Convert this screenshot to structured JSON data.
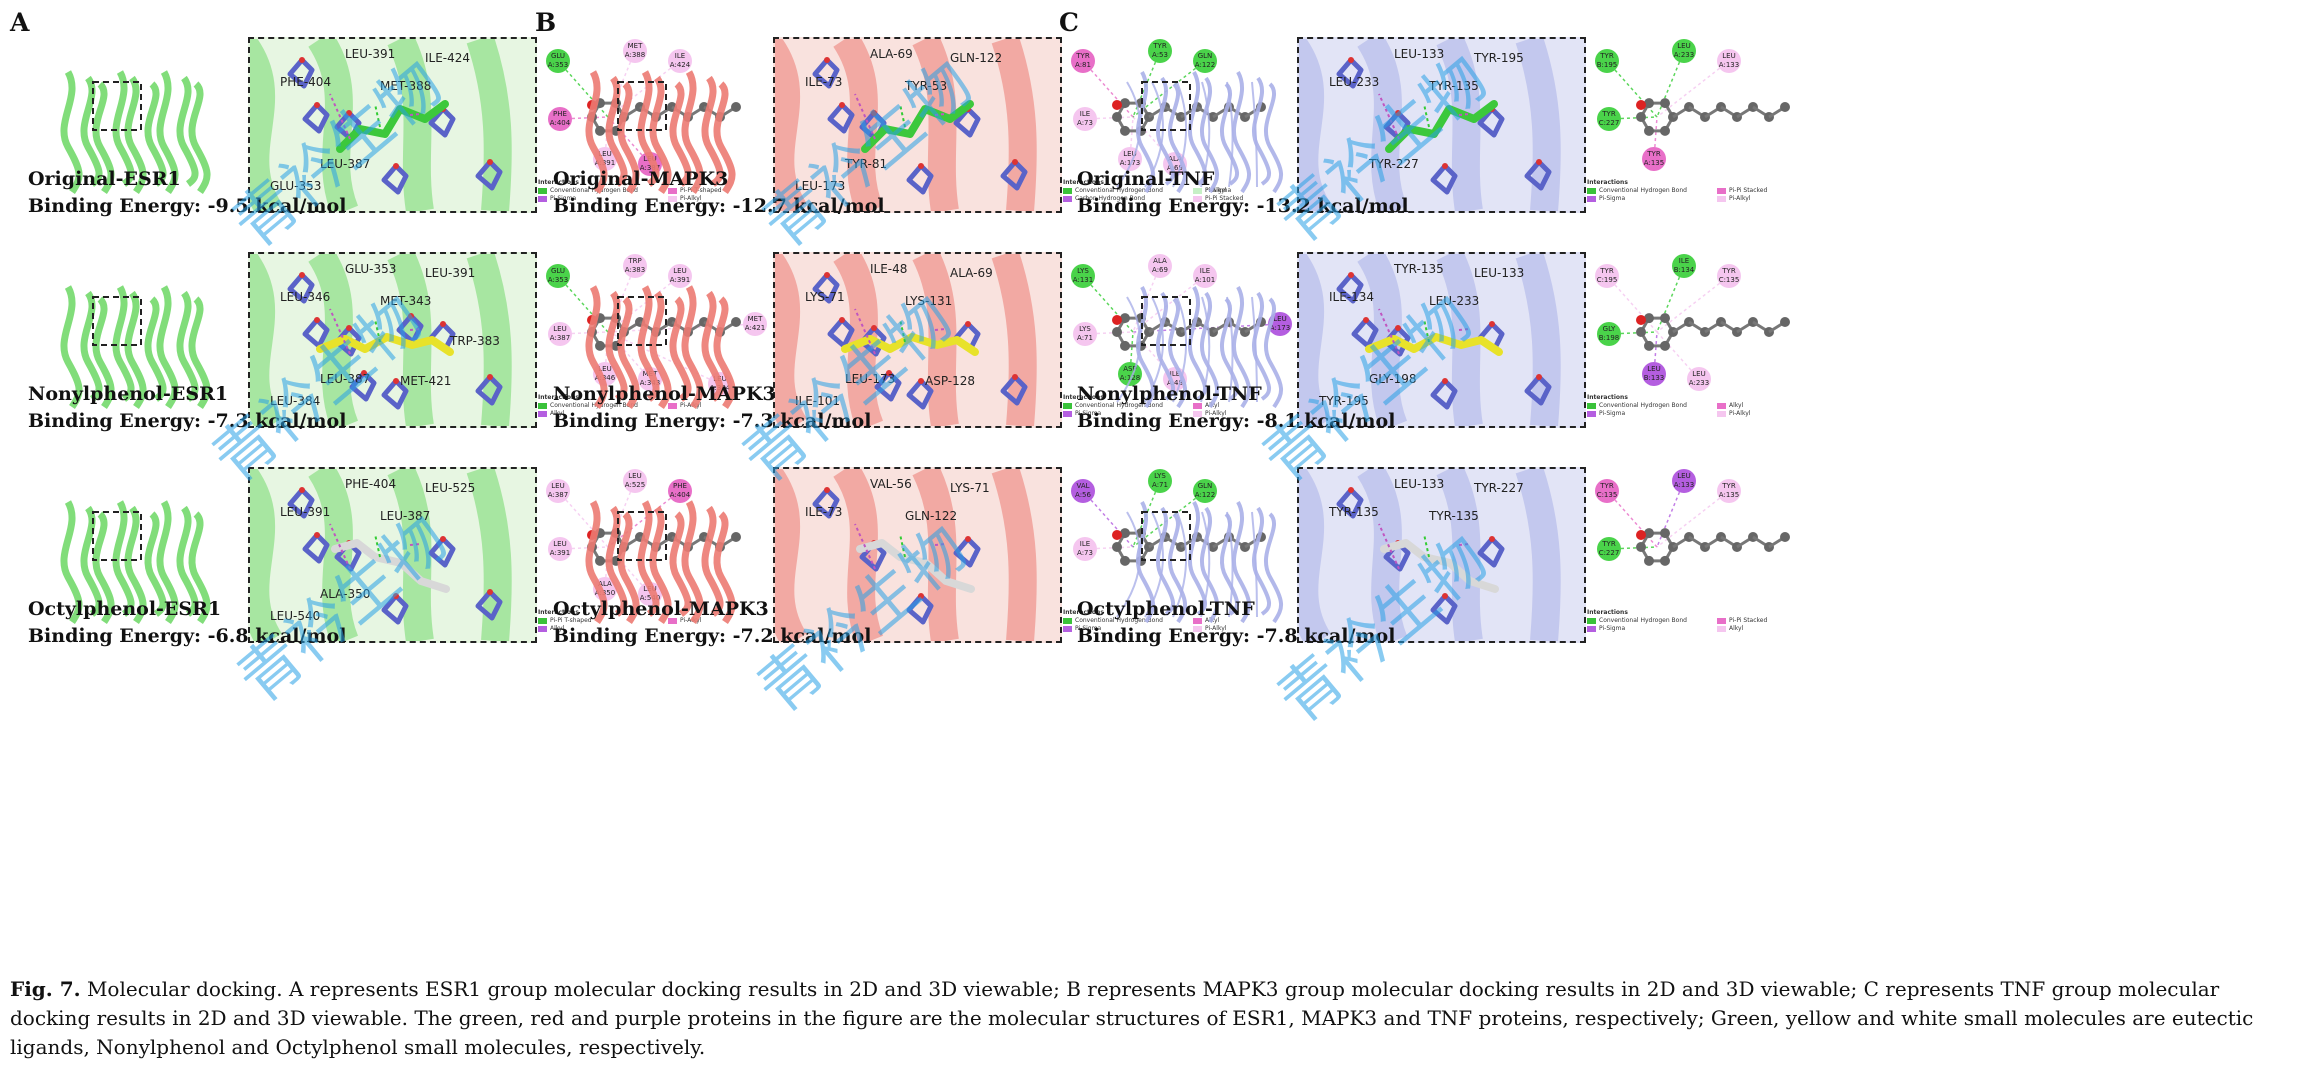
{
  "columns": [
    {
      "letter": "A",
      "protein_color": "#73d96b",
      "box_bg": "#e7f6e2",
      "panels": [
        {
          "name": "Original-ESR1",
          "energy": "Binding Energy: -9.5 kcal/mol",
          "ligand_color": "#3cc83c",
          "residues3d": [
            "LEU-391",
            "ILE-424",
            "PHE-404",
            "MET-388",
            "LEU-387",
            "GLU-353"
          ],
          "nodes2d": [
            {
              "t": "GLU\nA:353",
              "c": "g"
            },
            {
              "t": "MET\nA:388",
              "c": "p"
            },
            {
              "t": "ILE\nA:424",
              "c": "p"
            },
            {
              "t": "PHE\nA:404",
              "c": "m"
            },
            {
              "t": "LEU\nA:391",
              "c": "p"
            },
            {
              "t": "LEU\nA:387",
              "c": "m"
            }
          ],
          "legend": [
            "Conventional Hydrogen Bond",
            "Pi-Sigma",
            "Pi-Pi T-shaped",
            "Pi-Alkyl"
          ]
        },
        {
          "name": "Nonylphenol-ESR1",
          "energy": "Binding Energy: -7.3 kcal/mol",
          "ligand_color": "#e8e22a",
          "residues3d": [
            "GLU-353",
            "LEU-391",
            "LEU-346",
            "MET-343",
            "LEU-387",
            "LEU-384",
            "MET-421",
            "TRP-383"
          ],
          "nodes2d": [
            {
              "t": "GLU\nA:353",
              "c": "g"
            },
            {
              "t": "TRP\nA:383",
              "c": "p"
            },
            {
              "t": "LEU\nA:391",
              "c": "p"
            },
            {
              "t": "LEU\nA:387",
              "c": "p"
            },
            {
              "t": "LEU\nA:346",
              "c": "p"
            },
            {
              "t": "MET\nA:343",
              "c": "p"
            },
            {
              "t": "MET\nA:421",
              "c": "p"
            },
            {
              "t": "LEU\nA:384",
              "c": "p"
            }
          ],
          "legend": [
            "Conventional Hydrogen Bond",
            "Alkyl",
            "Pi-Alkyl"
          ]
        },
        {
          "name": "Octylphenol-ESR1",
          "energy": "Binding Energy: -6.8 kcal/mol",
          "ligand_color": "#d8d8d8",
          "residues3d": [
            "PHE-404",
            "LEU-525",
            "LEU-391",
            "LEU-387",
            "ALA-350",
            "LEU-540"
          ],
          "nodes2d": [
            {
              "t": "LEU\nA:387",
              "c": "p"
            },
            {
              "t": "LEU\nA:525",
              "c": "p"
            },
            {
              "t": "PHE\nA:404",
              "c": "m"
            },
            {
              "t": "LEU\nA:391",
              "c": "p"
            },
            {
              "t": "ALA\nA:350",
              "c": "p"
            },
            {
              "t": "LEU\nA:540",
              "c": "p"
            }
          ],
          "legend": [
            "Pi-Pi T-shaped",
            "Alkyl",
            "Pi-Alkyl"
          ]
        }
      ]
    },
    {
      "letter": "B",
      "protein_color": "#ec7a72",
      "box_bg": "#f9e2de",
      "panels": [
        {
          "name": "Original-MAPK3",
          "energy": "Binding Energy: -12.7 kcal/mol",
          "ligand_color": "#3cc83c",
          "residues3d": [
            "ALA-69",
            "GLN-122",
            "ILE-73",
            "TYR-53",
            "TYR-81",
            "LEU-173"
          ],
          "nodes2d": [
            {
              "t": "TYR\nA:81",
              "c": "m"
            },
            {
              "t": "TYR\nA:53",
              "c": "g"
            },
            {
              "t": "GLN\nA:122",
              "c": "g"
            },
            {
              "t": "ILE\nA:73",
              "c": "p"
            },
            {
              "t": "LEU\nA:173",
              "c": "p"
            },
            {
              "t": "ALA\nA:69",
              "c": "p"
            }
          ],
          "legend": [
            "Conventional Hydrogen Bond",
            "Carbon Hydrogen Bond",
            "Pi-Sigma",
            "Pi-Pi Stacked",
            "Pi-Alkyl"
          ]
        },
        {
          "name": "Nonylphenol-MAPK3",
          "energy": "Binding Energy: -7.3 kcal/mol",
          "ligand_color": "#e8e22a",
          "residues3d": [
            "ILE-48",
            "ALA-69",
            "LYS-71",
            "LYS-131",
            "LEU-173",
            "ILE-101",
            "ASP-128"
          ],
          "nodes2d": [
            {
              "t": "LYS\nA:131",
              "c": "g"
            },
            {
              "t": "ALA\nA:69",
              "c": "p"
            },
            {
              "t": "ILE\nA:101",
              "c": "p"
            },
            {
              "t": "LYS\nA:71",
              "c": "p"
            },
            {
              "t": "ASP\nA:128",
              "c": "g"
            },
            {
              "t": "ILE\nA:48",
              "c": "p"
            },
            {
              "t": "LEU\nA:173",
              "c": "v"
            }
          ],
          "legend": [
            "Conventional Hydrogen Bond",
            "Pi-Sigma",
            "Alkyl",
            "Pi-Alkyl"
          ]
        },
        {
          "name": "Octylphenol-MAPK3",
          "energy": "Binding Energy: -7.2 kcal/mol",
          "ligand_color": "#d8d8d8",
          "residues3d": [
            "VAL-56",
            "LYS-71",
            "ILE-73",
            "GLN-122"
          ],
          "nodes2d": [
            {
              "t": "VAL\nA:56",
              "c": "v"
            },
            {
              "t": "LYS\nA:71",
              "c": "g"
            },
            {
              "t": "GLN\nA:122",
              "c": "g"
            },
            {
              "t": "ILE\nA:73",
              "c": "p"
            }
          ],
          "legend": [
            "Conventional Hydrogen Bond",
            "Pi-Sigma",
            "Alkyl",
            "Pi-Alkyl"
          ]
        }
      ]
    },
    {
      "letter": "C",
      "protein_color": "#aab0e8",
      "box_bg": "#e2e4f6",
      "panels": [
        {
          "name": "Original-TNF",
          "energy": "Binding Energy: -13.2 kcal/mol",
          "ligand_color": "#3cc83c",
          "residues3d": [
            "LEU-133",
            "TYR-195",
            "LEU-233",
            "TYR-135",
            "TYR-227"
          ],
          "nodes2d": [
            {
              "t": "TYR\nB:195",
              "c": "g"
            },
            {
              "t": "LEU\nA:233",
              "c": "g"
            },
            {
              "t": "LEU\nA:133",
              "c": "p"
            },
            {
              "t": "TYR\nC:227",
              "c": "g"
            },
            {
              "t": "TYR\nA:135",
              "c": "m"
            }
          ],
          "legend": [
            "Conventional Hydrogen Bond",
            "Pi-Sigma",
            "Pi-Pi Stacked",
            "Pi-Alkyl"
          ]
        },
        {
          "name": "Nonylphenol-TNF",
          "energy": "Binding Energy: -8.1 kcal/mol",
          "ligand_color": "#e8e22a",
          "residues3d": [
            "TYR-135",
            "LEU-133",
            "ILE-134",
            "LEU-233",
            "GLY-198",
            "TYR-195"
          ],
          "nodes2d": [
            {
              "t": "TYR\nC:195",
              "c": "p"
            },
            {
              "t": "ILE\nB:134",
              "c": "g"
            },
            {
              "t": "TYR\nC:135",
              "c": "p"
            },
            {
              "t": "GLY\nB:198",
              "c": "g"
            },
            {
              "t": "LEU\nB:133",
              "c": "v"
            },
            {
              "t": "LEU\nA:233",
              "c": "p"
            }
          ],
          "legend": [
            "Conventional Hydrogen Bond",
            "Pi-Sigma",
            "Alkyl",
            "Pi-Alkyl"
          ]
        },
        {
          "name": "Octylphenol-TNF",
          "energy": "Binding Energy: -7.8 kcal/mol",
          "ligand_color": "#d8d8d8",
          "residues3d": [
            "LEU-133",
            "TYR-227",
            "TYR-135",
            "TYR-135"
          ],
          "nodes2d": [
            {
              "t": "TYR\nC:135",
              "c": "m"
            },
            {
              "t": "LEU\nA:133",
              "c": "v"
            },
            {
              "t": "TYR\nA:135",
              "c": "p"
            },
            {
              "t": "TYR\nC:227",
              "c": "g"
            }
          ],
          "legend": [
            "Conventional Hydrogen Bond",
            "Pi-Sigma",
            "Pi-Pi Stacked",
            "Alkyl"
          ]
        }
      ]
    }
  ],
  "legend_title": "Interactions",
  "watermark_text": "青衿生物",
  "caption": {
    "label": "Fig. 7.",
    "text": " Molecular docking. A represents ESR1 group molecular docking results in 2D and 3D viewable; B represents MAPK3 group molecular docking results in 2D and 3D viewable; C represents TNF group molecular docking results in 2D and 3D viewable. The green, red and purple proteins in the figure are the molecular structures of ESR1, MAPK3 and TNF proteins, respectively; Green, yellow and white small molecules are eutectic ligands, Nonylphenol and Octylphenol small molecules, respectively."
  },
  "colors": {
    "g": "#4ad34a",
    "p": "#f5c6ef",
    "m": "#e86fc8",
    "v": "#b45ee0",
    "residue_stick": "#5a63c8"
  }
}
